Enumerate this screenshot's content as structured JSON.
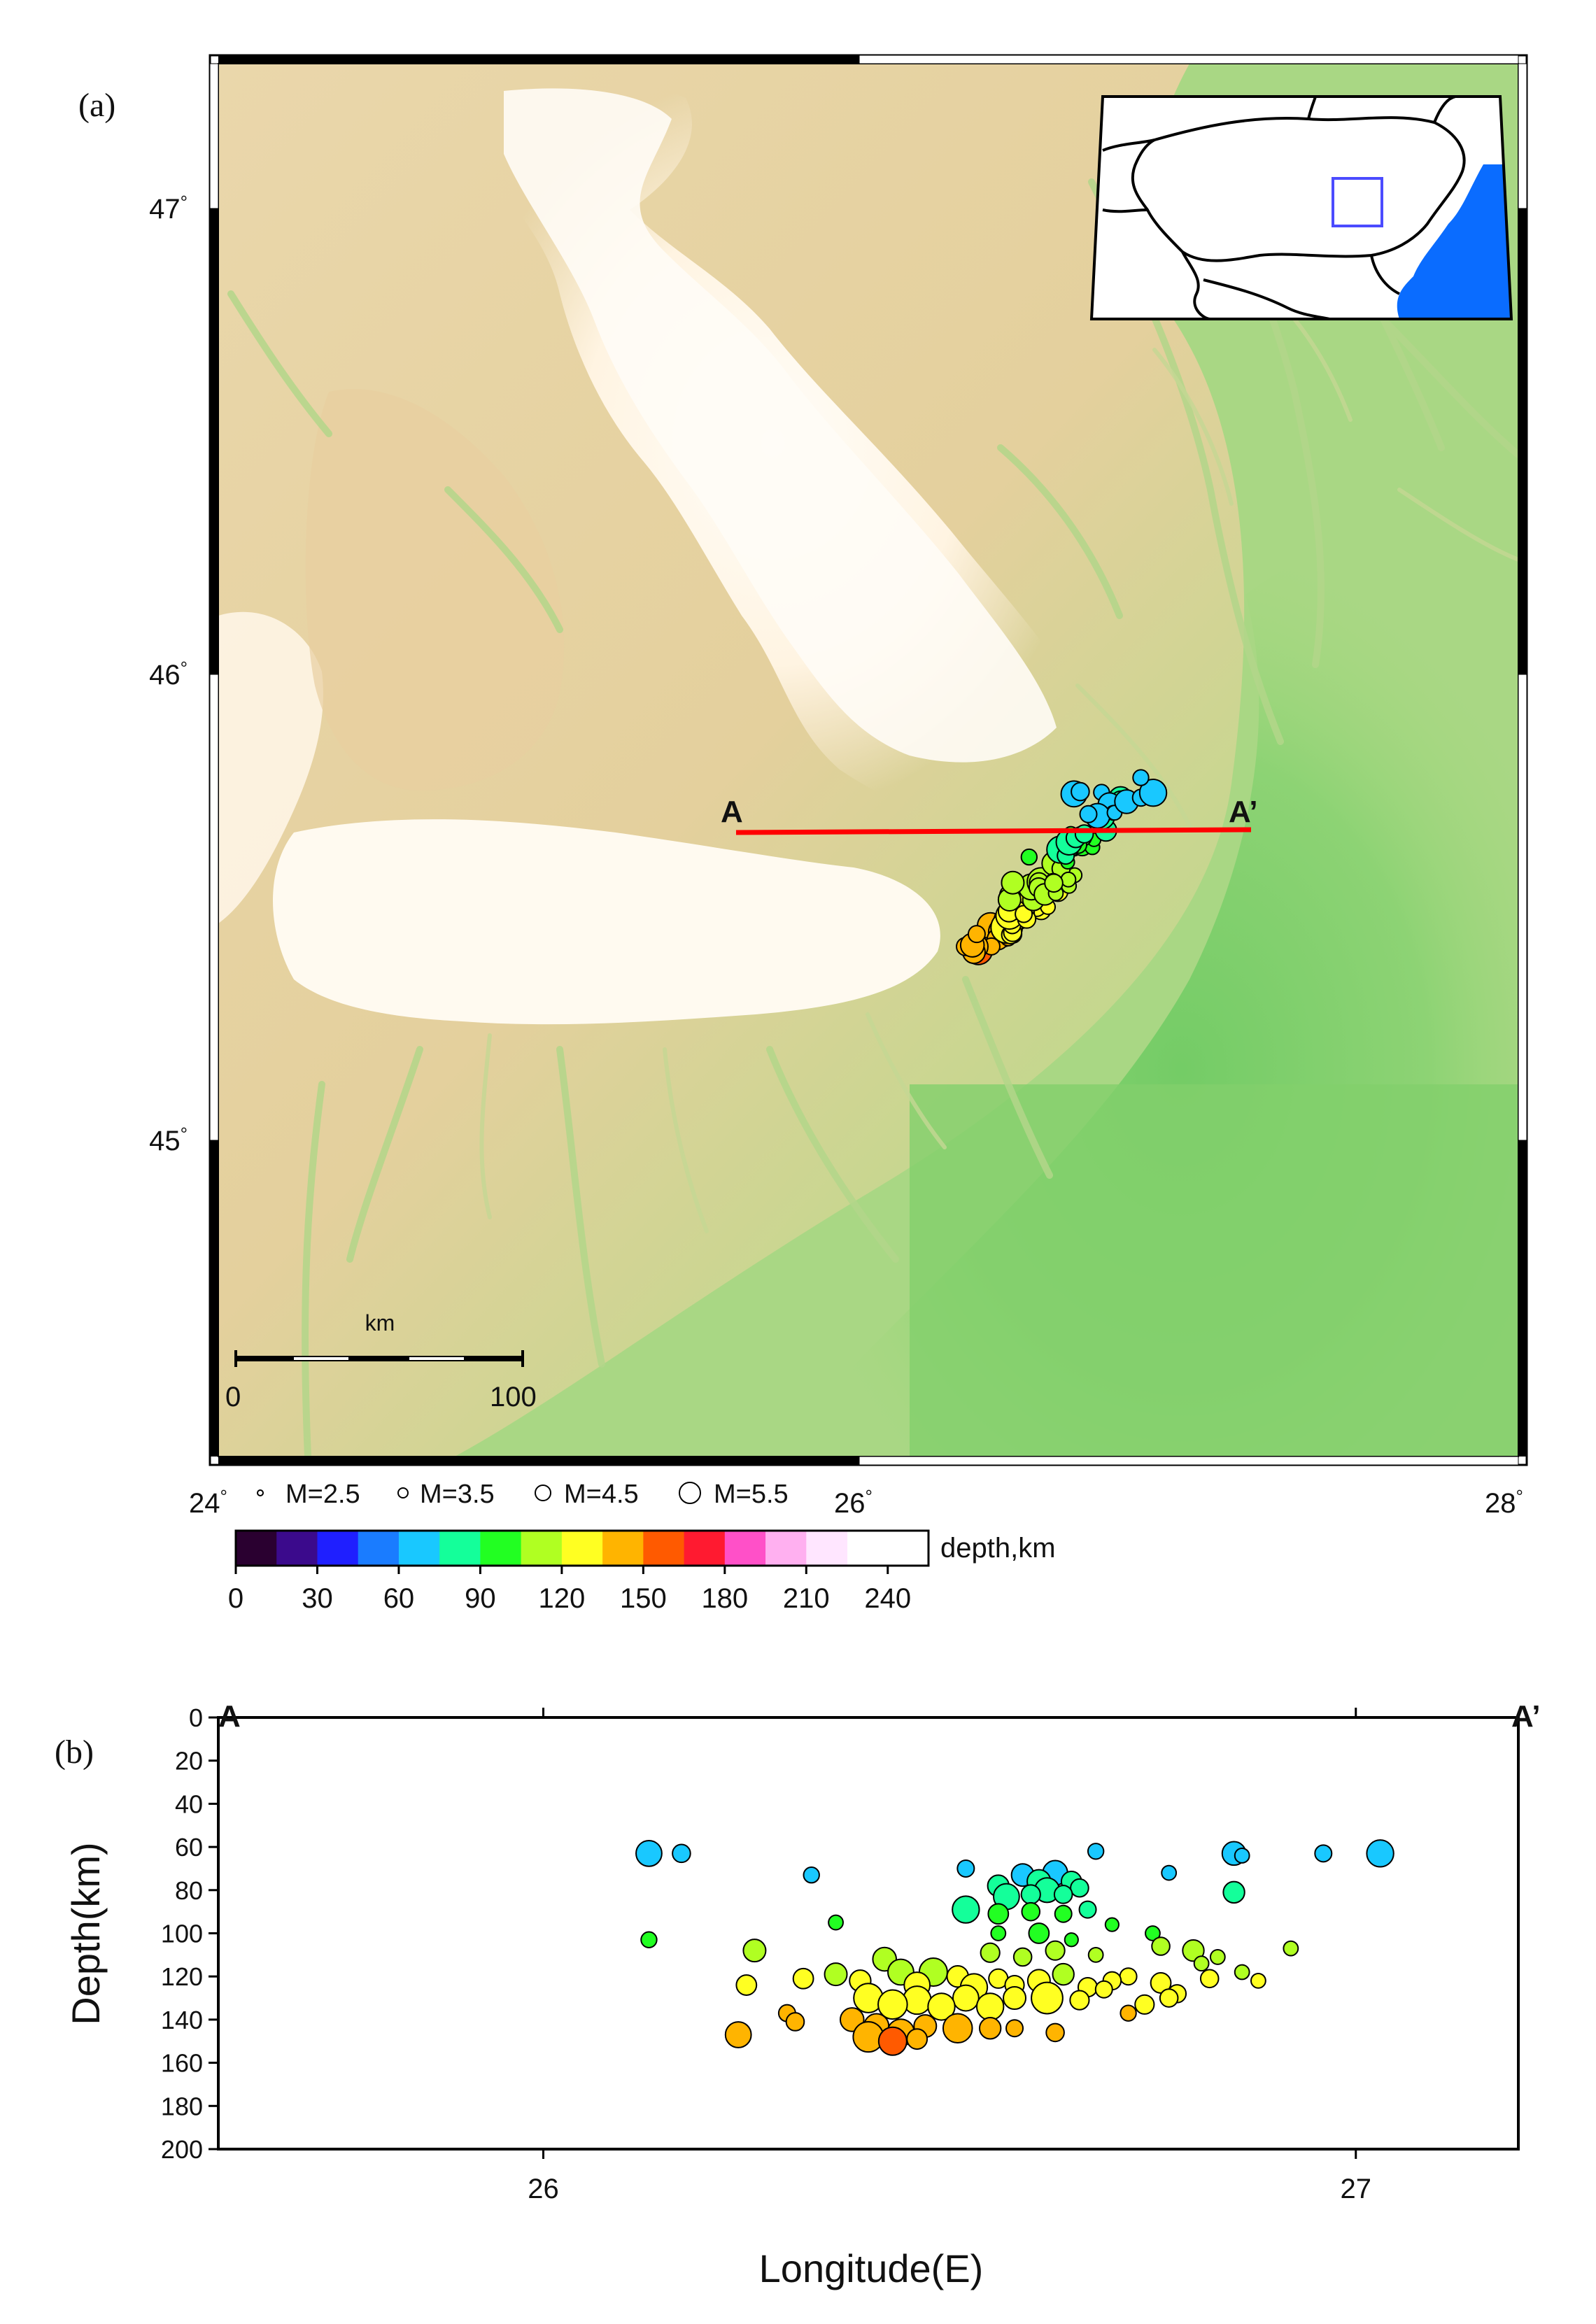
{
  "panel_a": {
    "label": "(a)",
    "lat_labels": [
      "47",
      "46",
      "45"
    ],
    "lon_labels": [
      "24",
      "26",
      "28"
    ],
    "degree_mark": "°",
    "profile": {
      "start_label": "A",
      "end_label": "A’",
      "color": "#ff0000"
    },
    "scale_bar": {
      "unit": "km",
      "start": "0",
      "end": "100"
    },
    "magnitude_legend": [
      "M=2.5",
      "M=3.5",
      "M=4.5",
      "M=5.5"
    ],
    "colorbar": {
      "label": "depth,km",
      "ticks": [
        "0",
        "30",
        "60",
        "90",
        "120",
        "150",
        "180",
        "210",
        "240"
      ],
      "colors": [
        "#2a0030",
        "#3b0a8c",
        "#1f1fff",
        "#1a7cff",
        "#19c8ff",
        "#14ff9a",
        "#22ff22",
        "#b0ff22",
        "#ffff22",
        "#ffb400",
        "#ff5a00",
        "#ff1a30",
        "#ff50c8",
        "#ffb0f0",
        "#ffe6ff"
      ]
    },
    "terrain_colors": {
      "highland": "#fffaf2",
      "hills": "#ecd3a6",
      "lowland": "#c9dc90",
      "plain": "#7fcf6a",
      "drainage": "#b7d88c"
    },
    "inset": {
      "sea_color": "#0a6cff",
      "box_color": "#4b4bff"
    }
  },
  "panel_b": {
    "label": "(b)",
    "profile_start_label": "A",
    "profile_end_label": "A’",
    "xlabel": "Longitude(E)",
    "ylabel": "Depth(km)",
    "x_ticks": [
      "26",
      "27"
    ],
    "y_ticks": [
      "0",
      "20",
      "40",
      "60",
      "80",
      "100",
      "120",
      "140",
      "160",
      "180",
      "200"
    ]
  },
  "chart_data": {
    "type": "scatter",
    "xlabel": "Longitude(E)",
    "ylabel": "Depth(km)",
    "xlim": [
      25.6,
      27.2
    ],
    "ylim": [
      200,
      0
    ],
    "y_inverted": true,
    "points": [
      {
        "x": 26.13,
        "y": 63,
        "m": 4.3
      },
      {
        "x": 26.17,
        "y": 63,
        "m": 3.6
      },
      {
        "x": 26.13,
        "y": 103,
        "m": 3.4
      },
      {
        "x": 26.33,
        "y": 73,
        "m": 3.4
      },
      {
        "x": 26.36,
        "y": 95,
        "m": 3.3
      },
      {
        "x": 26.52,
        "y": 70,
        "m": 3.5
      },
      {
        "x": 26.68,
        "y": 62,
        "m": 3.4
      },
      {
        "x": 26.77,
        "y": 72,
        "m": 3.3
      },
      {
        "x": 26.85,
        "y": 63,
        "m": 4.1
      },
      {
        "x": 26.86,
        "y": 64,
        "m": 3.3
      },
      {
        "x": 26.85,
        "y": 81,
        "m": 3.9
      },
      {
        "x": 26.96,
        "y": 63,
        "m": 3.5
      },
      {
        "x": 27.03,
        "y": 63,
        "m": 4.4
      },
      {
        "x": 26.59,
        "y": 73,
        "m": 4.0
      },
      {
        "x": 26.61,
        "y": 76,
        "m": 4.1
      },
      {
        "x": 26.63,
        "y": 72,
        "m": 4.2
      },
      {
        "x": 26.65,
        "y": 76,
        "m": 3.8
      },
      {
        "x": 26.56,
        "y": 78,
        "m": 3.9
      },
      {
        "x": 26.57,
        "y": 83,
        "m": 4.3
      },
      {
        "x": 26.6,
        "y": 82,
        "m": 3.7
      },
      {
        "x": 26.62,
        "y": 80,
        "m": 4.2
      },
      {
        "x": 26.64,
        "y": 82,
        "m": 3.6
      },
      {
        "x": 26.66,
        "y": 79,
        "m": 3.6
      },
      {
        "x": 26.52,
        "y": 89,
        "m": 4.4
      },
      {
        "x": 26.56,
        "y": 91,
        "m": 3.8
      },
      {
        "x": 26.6,
        "y": 90,
        "m": 3.6
      },
      {
        "x": 26.64,
        "y": 91,
        "m": 3.5
      },
      {
        "x": 26.67,
        "y": 89,
        "m": 3.5
      },
      {
        "x": 26.56,
        "y": 100,
        "m": 3.3
      },
      {
        "x": 26.61,
        "y": 100,
        "m": 3.8
      },
      {
        "x": 26.65,
        "y": 103,
        "m": 3.2
      },
      {
        "x": 26.7,
        "y": 96,
        "m": 3.2
      },
      {
        "x": 26.75,
        "y": 100,
        "m": 3.3
      },
      {
        "x": 26.55,
        "y": 109,
        "m": 3.7
      },
      {
        "x": 26.59,
        "y": 111,
        "m": 3.6
      },
      {
        "x": 26.63,
        "y": 108,
        "m": 3.7
      },
      {
        "x": 26.68,
        "y": 110,
        "m": 3.3
      },
      {
        "x": 26.76,
        "y": 106,
        "m": 3.6
      },
      {
        "x": 26.8,
        "y": 108,
        "m": 3.9
      },
      {
        "x": 26.83,
        "y": 111,
        "m": 3.3
      },
      {
        "x": 26.92,
        "y": 107,
        "m": 3.3
      },
      {
        "x": 26.26,
        "y": 108,
        "m": 4.0
      },
      {
        "x": 26.25,
        "y": 124,
        "m": 3.8
      },
      {
        "x": 26.32,
        "y": 121,
        "m": 3.8
      },
      {
        "x": 26.36,
        "y": 119,
        "m": 4.0
      },
      {
        "x": 26.39,
        "y": 122,
        "m": 3.9
      },
      {
        "x": 26.42,
        "y": 112,
        "m": 4.1
      },
      {
        "x": 26.44,
        "y": 118,
        "m": 4.3
      },
      {
        "x": 26.46,
        "y": 124,
        "m": 4.3
      },
      {
        "x": 26.48,
        "y": 118,
        "m": 4.5
      },
      {
        "x": 26.51,
        "y": 120,
        "m": 3.9
      },
      {
        "x": 26.53,
        "y": 125,
        "m": 4.4
      },
      {
        "x": 26.56,
        "y": 121,
        "m": 3.7
      },
      {
        "x": 26.58,
        "y": 124,
        "m": 3.7
      },
      {
        "x": 26.61,
        "y": 122,
        "m": 4.0
      },
      {
        "x": 26.64,
        "y": 119,
        "m": 3.9
      },
      {
        "x": 26.67,
        "y": 125,
        "m": 3.7
      },
      {
        "x": 26.7,
        "y": 122,
        "m": 3.6
      },
      {
        "x": 26.72,
        "y": 120,
        "m": 3.5
      },
      {
        "x": 26.76,
        "y": 123,
        "m": 3.8
      },
      {
        "x": 26.78,
        "y": 128,
        "m": 3.6
      },
      {
        "x": 26.81,
        "y": 114,
        "m": 3.3
      },
      {
        "x": 26.82,
        "y": 121,
        "m": 3.6
      },
      {
        "x": 26.86,
        "y": 118,
        "m": 3.3
      },
      {
        "x": 26.88,
        "y": 122,
        "m": 3.3
      },
      {
        "x": 26.4,
        "y": 130,
        "m": 4.6
      },
      {
        "x": 26.43,
        "y": 133,
        "m": 4.6
      },
      {
        "x": 26.46,
        "y": 131,
        "m": 4.5
      },
      {
        "x": 26.49,
        "y": 134,
        "m": 4.4
      },
      {
        "x": 26.52,
        "y": 130,
        "m": 4.3
      },
      {
        "x": 26.55,
        "y": 134,
        "m": 4.4
      },
      {
        "x": 26.58,
        "y": 130,
        "m": 4.0
      },
      {
        "x": 26.62,
        "y": 130,
        "m": 4.8
      },
      {
        "x": 26.66,
        "y": 131,
        "m": 3.7
      },
      {
        "x": 26.69,
        "y": 126,
        "m": 3.5
      },
      {
        "x": 26.74,
        "y": 133,
        "m": 3.7
      },
      {
        "x": 26.77,
        "y": 130,
        "m": 3.6
      },
      {
        "x": 26.3,
        "y": 137,
        "m": 3.5
      },
      {
        "x": 26.31,
        "y": 141,
        "m": 3.6
      },
      {
        "x": 26.38,
        "y": 140,
        "m": 4.1
      },
      {
        "x": 26.41,
        "y": 143,
        "m": 4.2
      },
      {
        "x": 26.44,
        "y": 146,
        "m": 4.4
      },
      {
        "x": 26.47,
        "y": 143,
        "m": 4.0
      },
      {
        "x": 26.51,
        "y": 144,
        "m": 4.6
      },
      {
        "x": 26.55,
        "y": 144,
        "m": 3.9
      },
      {
        "x": 26.58,
        "y": 144,
        "m": 3.5
      },
      {
        "x": 26.63,
        "y": 146,
        "m": 3.6
      },
      {
        "x": 26.72,
        "y": 137,
        "m": 3.4
      },
      {
        "x": 26.24,
        "y": 147,
        "m": 4.3
      },
      {
        "x": 26.4,
        "y": 148,
        "m": 4.7
      },
      {
        "x": 26.43,
        "y": 150,
        "m": 4.5
      },
      {
        "x": 26.46,
        "y": 149,
        "m": 3.8
      }
    ]
  }
}
